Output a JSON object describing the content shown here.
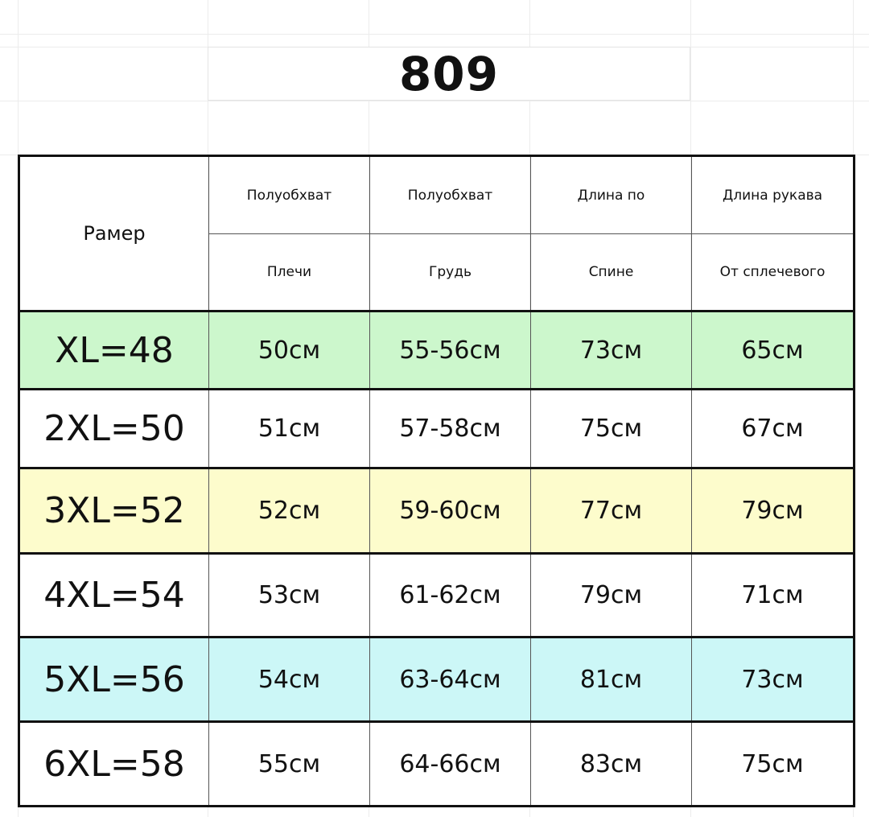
{
  "title": "809",
  "header": {
    "size_label": "Рамер",
    "columns": [
      {
        "line1": "Полуобхват",
        "line2": "Плечи"
      },
      {
        "line1": "Полуобхват",
        "line2": "Грудь"
      },
      {
        "line1": "Длина по",
        "line2": "Спине"
      },
      {
        "line1": "Длина рукава",
        "line2": "От сплечевого"
      }
    ]
  },
  "rows": [
    {
      "size": "XL=48",
      "shoulders": "50см",
      "chest": "55-56см",
      "back": "73см",
      "sleeve": "65см",
      "color": "#ccf7cc"
    },
    {
      "size": "2XL=50",
      "shoulders": "51см",
      "chest": "57-58см",
      "back": "75см",
      "sleeve": "67см",
      "color": "#ffffff"
    },
    {
      "size": "3XL=52",
      "shoulders": "52см",
      "chest": "59-60см",
      "back": "77см",
      "sleeve": "79см",
      "color": "#fdfccc"
    },
    {
      "size": "4XL=54",
      "shoulders": "53см",
      "chest": "61-62см",
      "back": "79см",
      "sleeve": "71см",
      "color": "#ffffff"
    },
    {
      "size": "5XL=56",
      "shoulders": "54см",
      "chest": "63-64см",
      "back": "81см",
      "sleeve": "73см",
      "color": "#ccf7f7"
    },
    {
      "size": "6XL=58",
      "shoulders": "55см",
      "chest": "64-66см",
      "back": "83см",
      "sleeve": "75см",
      "color": "#ffffff"
    }
  ]
}
